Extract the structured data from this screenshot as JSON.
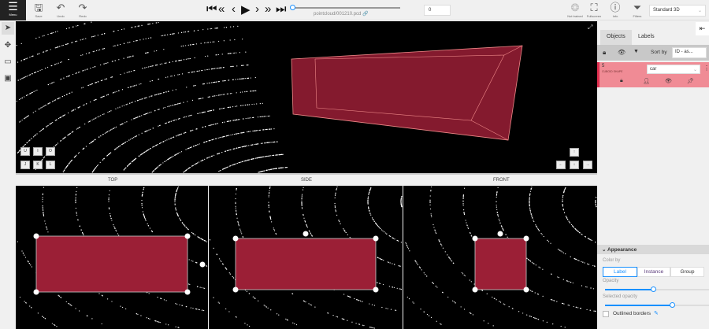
{
  "toolbar": {
    "menu": "Menu",
    "save": "Save",
    "undo": "Undo",
    "redo": "Redo",
    "filename": "pointcloud/001210.pcd",
    "frame": "0",
    "not_trained": "Not trained",
    "fullscreen": "Fullscreen",
    "info": "Info",
    "filters": "Filters",
    "workspace": "Standard 3D",
    "playback_progress": 0
  },
  "canvas": {
    "cam_keys": [
      "U",
      "I",
      "O",
      "J",
      "K",
      "L"
    ],
    "arrow_keys": [
      "↑",
      "←",
      "↓",
      "→"
    ]
  },
  "views": {
    "top": "TOP",
    "side": "SIDE",
    "front": "FRONT"
  },
  "sidebar": {
    "tabs": [
      "Objects",
      "Labels"
    ],
    "sort_by": "Sort by",
    "sort_value": "ID - as...",
    "object": {
      "id": "5",
      "type": "CUBOID SHAPE",
      "label": "car",
      "color": "#f08b95"
    },
    "appearance": {
      "title": "Appearance",
      "color_by": "Color by",
      "options": [
        "Label",
        "Instance",
        "Group"
      ],
      "selected": "Label",
      "opacity": "Opacity",
      "opacity_value": 0.5,
      "selected_opacity": "Selected opacity",
      "selected_opacity_value": 0.7,
      "outlined": "Outlined borders"
    }
  },
  "colors": {
    "cuboid": "#9b1f36",
    "accent": "#1890ff"
  }
}
